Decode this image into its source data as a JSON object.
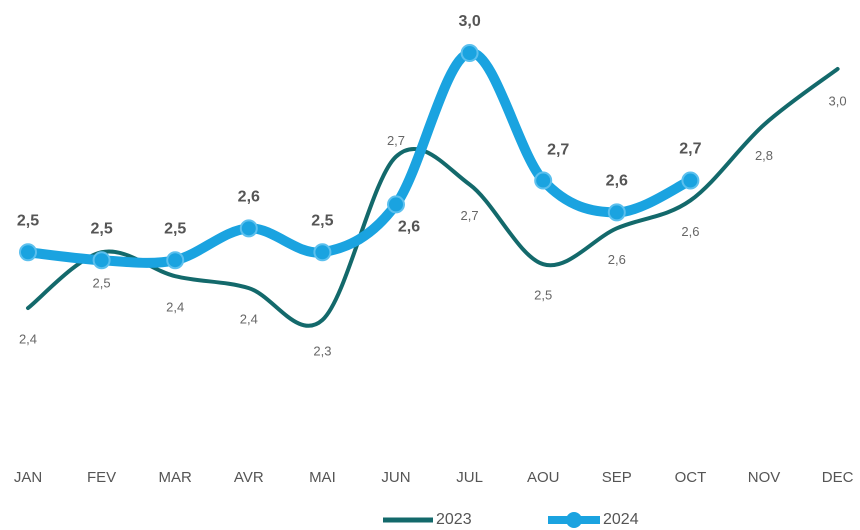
{
  "chart_data": {
    "type": "line",
    "categories": [
      "JAN",
      "FEV",
      "MAR",
      "AVR",
      "MAI",
      "JUN",
      "JUL",
      "AOU",
      "SEP",
      "OCT",
      "NOV",
      "DEC"
    ],
    "series": [
      {
        "name": "2023",
        "color": "#13696b",
        "values": [
          2.36,
          2.5,
          2.44,
          2.41,
          2.33,
          2.74,
          2.67,
          2.47,
          2.56,
          2.63,
          2.82,
          2.96
        ],
        "value_labels": [
          "2,4",
          "2,5",
          "2,4",
          "2,4",
          "2,3",
          "2,7",
          "2,7",
          "2,5",
          "2,6",
          "2,6",
          "2,8",
          "3,0"
        ]
      },
      {
        "name": "2024",
        "color": "#1aa3e0",
        "values": [
          2.5,
          2.48,
          2.48,
          2.56,
          2.5,
          2.62,
          3.0,
          2.68,
          2.6,
          2.68,
          null,
          null
        ],
        "value_labels": [
          "2,5",
          "2,5",
          "2,5",
          "2,6",
          "2,5",
          "2,6",
          "3,0",
          "2,7",
          "2,6",
          "2,7",
          null,
          null
        ]
      }
    ]
  }
}
